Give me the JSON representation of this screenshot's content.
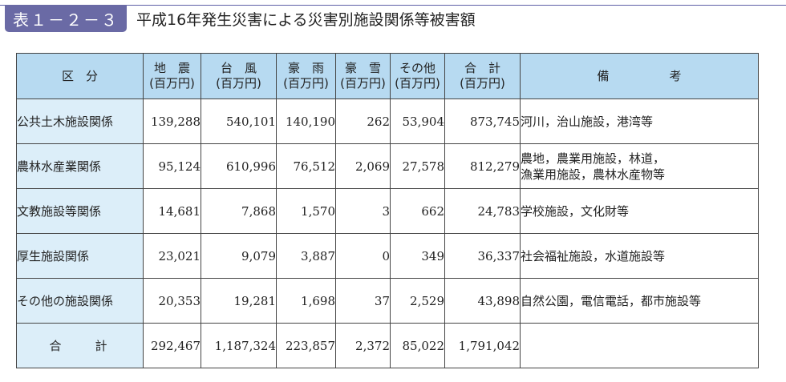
{
  "header": {
    "tag": "表１－２－３",
    "title": "平成16年発生災害による災害別施設関係等被害額"
  },
  "columns": {
    "category": "区　分",
    "quake": "地　震",
    "typhoon": "台　風",
    "heavy_rain": "豪　雨",
    "heavy_snow": "豪　雪",
    "other": "その他",
    "sum": "合　計",
    "unit": "(百万円)",
    "remarks": "備　　　　　考"
  },
  "rows": [
    {
      "label": "公共土木施設関係",
      "quake": "139,288",
      "typhoon": "540,101",
      "heavy_rain": "140,190",
      "heavy_snow": "262",
      "other": "53,904",
      "sum": "873,745",
      "remarks": [
        "河川，治山施設，港湾等"
      ]
    },
    {
      "label": "農林水産業関係",
      "quake": "95,124",
      "typhoon": "610,996",
      "heavy_rain": "76,512",
      "heavy_snow": "2,069",
      "other": "27,578",
      "sum": "812,279",
      "remarks": [
        "農地，農業用施設，林道，",
        "漁業用施設，農林水産物等"
      ]
    },
    {
      "label": "文教施設等関係",
      "quake": "14,681",
      "typhoon": "7,868",
      "heavy_rain": "1,570",
      "heavy_snow": "3",
      "other": "662",
      "sum": "24,783",
      "remarks": [
        "学校施設，文化財等"
      ]
    },
    {
      "label": "厚生施設関係",
      "quake": "23,021",
      "typhoon": "9,079",
      "heavy_rain": "3,887",
      "heavy_snow": "0",
      "other": "349",
      "sum": "36,337",
      "remarks": [
        "社会福祉施設，水道施設等"
      ]
    },
    {
      "label": "その他の施設関係",
      "quake": "20,353",
      "typhoon": "19,281",
      "heavy_rain": "1,698",
      "heavy_snow": "37",
      "other": "2,529",
      "sum": "43,898",
      "remarks": [
        "自然公園，電信電話，都市施設等"
      ]
    }
  ],
  "total": {
    "label": "合　　計",
    "quake": "292,467",
    "typhoon": "1,187,324",
    "heavy_rain": "223,857",
    "heavy_snow": "2,372",
    "other": "85,022",
    "sum": "1,791,042"
  },
  "colors": {
    "header_fill": "#b7daf1",
    "label_fill": "#dceef9",
    "tag_fill": "#6a6aa5"
  }
}
